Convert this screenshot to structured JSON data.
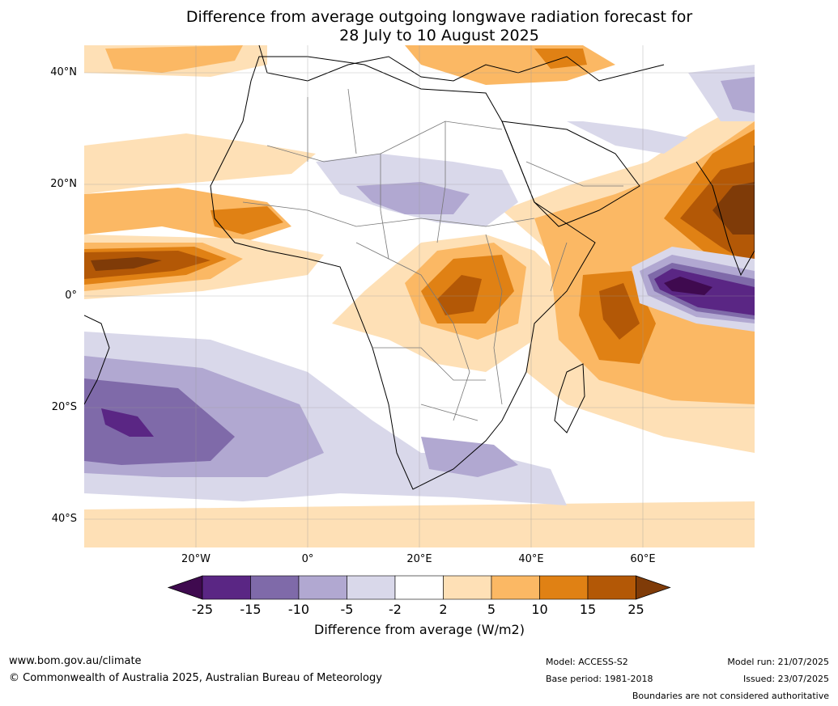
{
  "title_line1": "Difference from average outgoing longwave radiation forecast for",
  "title_line2": "28 July to 10 August 2025",
  "lat_ticks": [
    "40°N",
    "20°N",
    "0°",
    "20°S",
    "40°S"
  ],
  "lon_ticks": [
    "20°W",
    "0°",
    "20°E",
    "40°E",
    "60°E"
  ],
  "colorbar": {
    "ticks": [
      "-25",
      "-15",
      "-10",
      "-5",
      "-2",
      "2",
      "5",
      "10",
      "15",
      "25"
    ],
    "colors": [
      "#3f0a4f",
      "#5a2684",
      "#7f6aa9",
      "#b1a8d1",
      "#d9d8ea",
      "#ffffff",
      "#fee0b6",
      "#fbb864",
      "#e08114",
      "#b35806",
      "#7f3b08"
    ],
    "label": "Difference from average (W/m2)"
  },
  "footer": {
    "url": "www.bom.gov.au/climate",
    "copyright": "© Commonwealth of Australia 2025, Australian Bureau of Meteorology",
    "model": "Model: ACCESS-S2",
    "base_period": "Base period: 1981-2018",
    "model_run": "Model run: 21/07/2025",
    "issued": "Issued: 23/07/2025",
    "disclaimer": "Boundaries are not considered authoritative"
  }
}
